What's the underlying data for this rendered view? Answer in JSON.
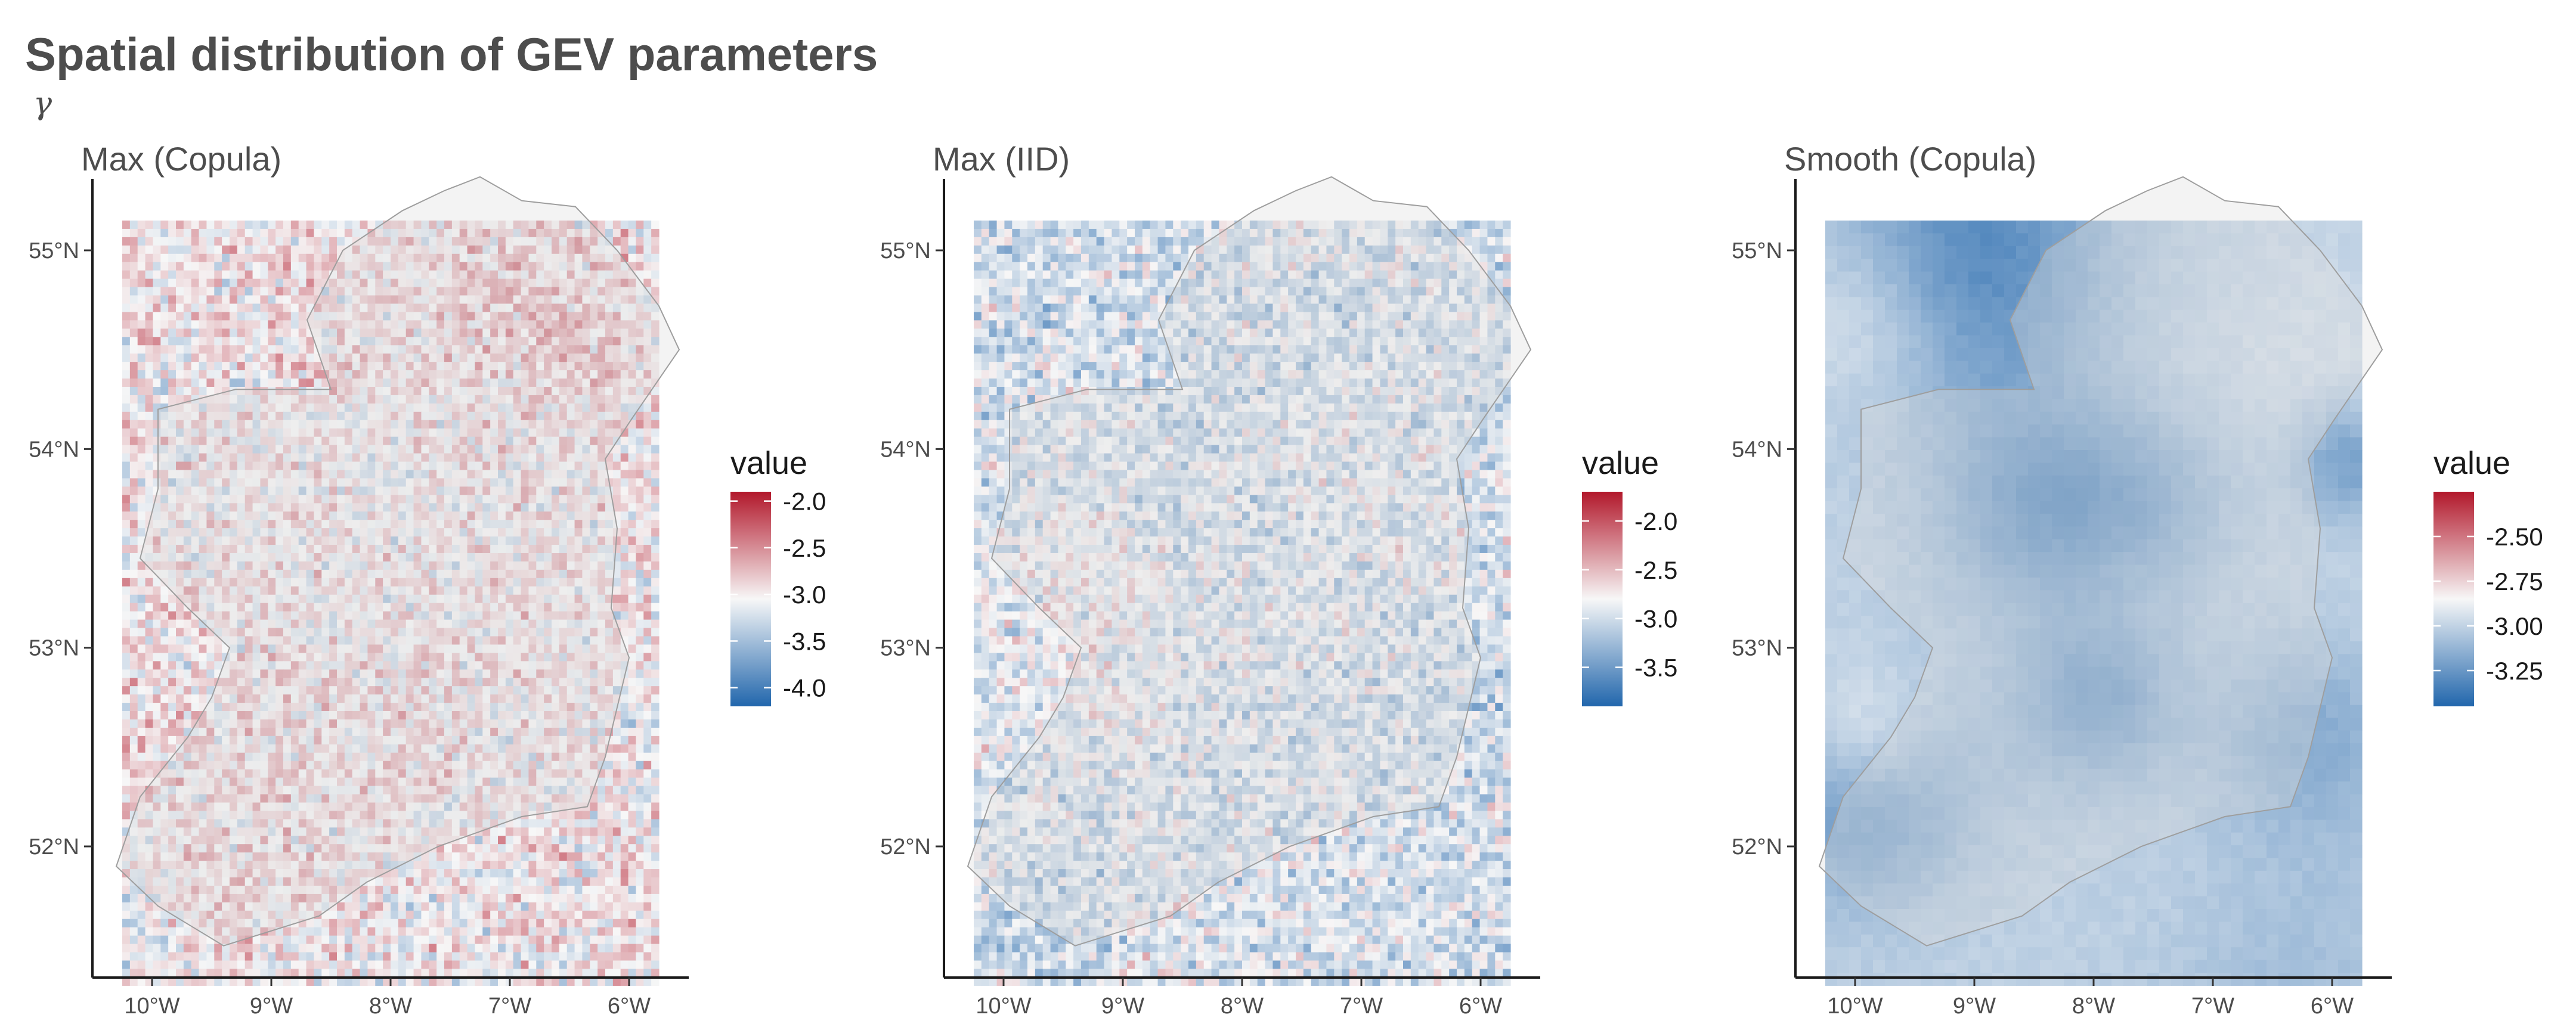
{
  "title": "Spatial distribution of GEV parameters",
  "subtitle": "γ",
  "chart_data": [
    {
      "type": "heatmap",
      "panel_title": "Max (Copula)",
      "x_ticks": [
        "10°W",
        "9°W",
        "8°W",
        "7°W",
        "6°W"
      ],
      "y_ticks": [
        "55°N",
        "54°N",
        "53°N",
        "52°N"
      ],
      "x_values": [
        -10,
        -9,
        -8,
        -7,
        -6
      ],
      "y_values": [
        55,
        54,
        53,
        52
      ],
      "xlim": [
        -10.5,
        -5.5
      ],
      "ylim": [
        51.4,
        55.3
      ],
      "legend_title": "value",
      "legend_ticks": [
        "-2.0",
        "-2.5",
        "-3.0",
        "-3.5",
        "-4.0"
      ],
      "legend_values": [
        -2.0,
        -2.5,
        -3.0,
        -3.5,
        -4.0
      ],
      "legend_range": [
        -4.2,
        -1.9
      ],
      "field_mean": -3.0,
      "field_noise": 0.35,
      "smooth": false,
      "colors": {
        "low": "#2166ac",
        "mid": "#f7f7f7",
        "high": "#b2182b"
      }
    },
    {
      "type": "heatmap",
      "panel_title": "Max (IID)",
      "x_ticks": [
        "10°W",
        "9°W",
        "8°W",
        "7°W",
        "6°W"
      ],
      "y_ticks": [
        "55°N",
        "54°N",
        "53°N",
        "52°N"
      ],
      "x_values": [
        -10,
        -9,
        -8,
        -7,
        -6
      ],
      "y_values": [
        55,
        54,
        53,
        52
      ],
      "xlim": [
        -10.5,
        -5.5
      ],
      "ylim": [
        51.4,
        55.3
      ],
      "legend_title": "value",
      "legend_ticks": [
        "-2.0",
        "-2.5",
        "-3.0",
        "-3.5"
      ],
      "legend_values": [
        -2.0,
        -2.5,
        -3.0,
        -3.5
      ],
      "legend_range": [
        -3.9,
        -1.7
      ],
      "field_mean": -2.95,
      "field_noise": 0.32,
      "smooth": false,
      "colors": {
        "low": "#2166ac",
        "mid": "#f7f7f7",
        "high": "#b2182b"
      }
    },
    {
      "type": "heatmap",
      "panel_title": "Smooth (Copula)",
      "x_ticks": [
        "10°W",
        "9°W",
        "8°W",
        "7°W",
        "6°W"
      ],
      "y_ticks": [
        "55°N",
        "54°N",
        "53°N",
        "52°N"
      ],
      "x_values": [
        -10,
        -9,
        -8,
        -7,
        -6
      ],
      "y_values": [
        55,
        54,
        53,
        52
      ],
      "xlim": [
        -10.5,
        -5.5
      ],
      "ylim": [
        51.4,
        55.3
      ],
      "legend_title": "value",
      "legend_ticks": [
        "-2.50",
        "-2.75",
        "-3.00",
        "-3.25"
      ],
      "legend_values": [
        -2.5,
        -2.75,
        -3.0,
        -3.25
      ],
      "legend_range": [
        -3.45,
        -2.25
      ],
      "field_mean": -3.0,
      "field_noise": 0.12,
      "smooth": true,
      "colors": {
        "low": "#2166ac",
        "mid": "#f7f7f7",
        "high": "#b2182b"
      }
    }
  ]
}
